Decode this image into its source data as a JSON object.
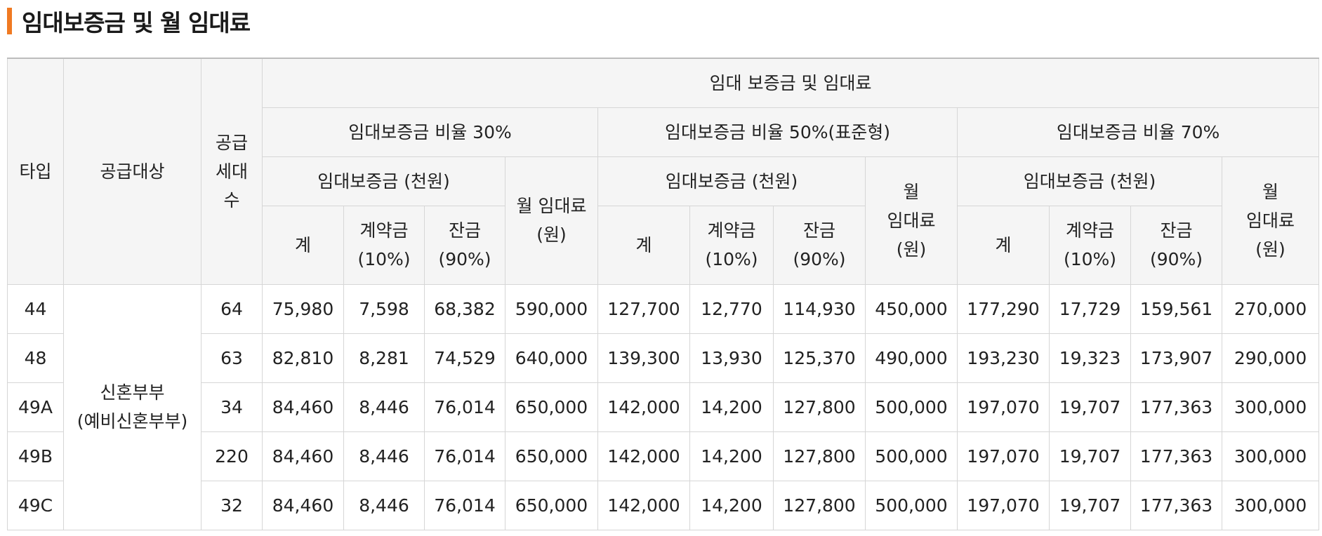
{
  "page": {
    "title": "임대보증금 및 월 임대료",
    "accent_color": "#f07a22"
  },
  "table": {
    "headers": {
      "type": "타입",
      "target": "공급대상",
      "units_line1": "공급",
      "units_line2": "세대",
      "units_line3": "수",
      "group_main": "임대 보증금 및 임대료",
      "ratio30": "임대보증금 비율 30%",
      "ratio50": "임대보증금 비율 50%(표준형)",
      "ratio70": "임대보증금 비율 70%",
      "deposit": "임대보증금 (천원)",
      "monthly_rent_a": "월 임대료",
      "monthly_rent_b": "(원)",
      "monthly_line1": "월",
      "monthly_line2": "임대료",
      "monthly_line3": "(원)",
      "total": "계",
      "contract_a": "계약금",
      "contract_b": "(10%)",
      "balance_a": "잔금",
      "balance_b": "(90%)"
    },
    "target_line1": "신혼부부",
    "target_line2": "(예비신혼부부)",
    "rows": [
      {
        "type": "44",
        "units": "64",
        "cells": [
          "75,980",
          "7,598",
          "68,382",
          "590,000",
          "127,700",
          "12,770",
          "114,930",
          "450,000",
          "177,290",
          "17,729",
          "159,561",
          "270,000"
        ]
      },
      {
        "type": "48",
        "units": "63",
        "cells": [
          "82,810",
          "8,281",
          "74,529",
          "640,000",
          "139,300",
          "13,930",
          "125,370",
          "490,000",
          "193,230",
          "19,323",
          "173,907",
          "290,000"
        ]
      },
      {
        "type": "49A",
        "units": "34",
        "cells": [
          "84,460",
          "8,446",
          "76,014",
          "650,000",
          "142,000",
          "14,200",
          "127,800",
          "500,000",
          "197,070",
          "19,707",
          "177,363",
          "300,000"
        ]
      },
      {
        "type": "49B",
        "units": "220",
        "cells": [
          "84,460",
          "8,446",
          "76,014",
          "650,000",
          "142,000",
          "14,200",
          "127,800",
          "500,000",
          "197,070",
          "19,707",
          "177,363",
          "300,000"
        ]
      },
      {
        "type": "49C",
        "units": "32",
        "cells": [
          "84,460",
          "8,446",
          "76,014",
          "650,000",
          "142,000",
          "14,200",
          "127,800",
          "500,000",
          "197,070",
          "19,707",
          "177,363",
          "300,000"
        ]
      }
    ]
  }
}
